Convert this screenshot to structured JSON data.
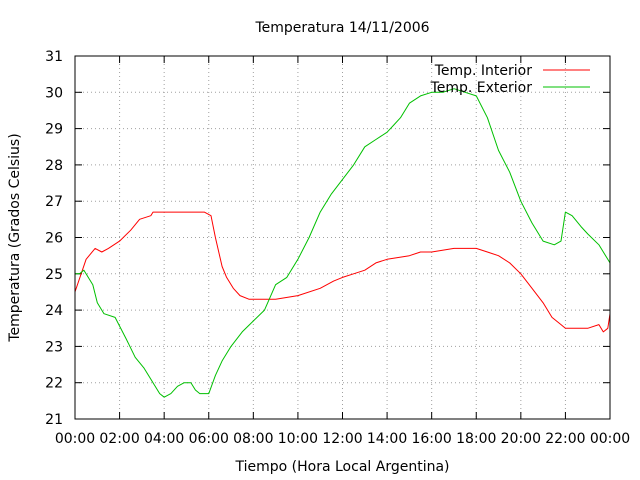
{
  "chart_data": {
    "type": "line",
    "title": "Temperatura 14/11/2006",
    "xlabel": "Tiempo (Hora Local Argentina)",
    "ylabel": "Temperatura (Grados Celsius)",
    "xlim": [
      0,
      24
    ],
    "ylim": [
      21,
      31
    ],
    "grid": true,
    "legend_position": "top-right",
    "x_tick_labels": [
      "00:00",
      "02:00",
      "04:00",
      "06:00",
      "08:00",
      "10:00",
      "12:00",
      "14:00",
      "16:00",
      "18:00",
      "20:00",
      "22:00",
      "00:00"
    ],
    "y_tick_labels": [
      "21",
      "22",
      "23",
      "24",
      "25",
      "26",
      "27",
      "28",
      "29",
      "30",
      "31"
    ],
    "series": [
      {
        "name": "Temp. Interior",
        "color": "#ff0000",
        "x_hours": [
          0,
          0.5,
          0.9,
          1.2,
          1.5,
          2,
          2.5,
          2.9,
          3.4,
          3.5,
          4,
          5,
          5.8,
          6.1,
          6.3,
          6.6,
          6.8,
          7.1,
          7.4,
          7.8,
          8,
          9,
          10,
          11,
          11.6,
          12,
          12.5,
          13,
          13.5,
          14,
          15,
          15.5,
          16,
          17,
          17.5,
          18,
          18.5,
          19,
          19.5,
          20,
          20.5,
          21,
          21.4,
          21.8,
          22,
          23,
          23.5,
          23.7,
          23.9,
          24
        ],
        "values": [
          24.5,
          25.4,
          25.7,
          25.6,
          25.7,
          25.9,
          26.2,
          26.5,
          26.6,
          26.7,
          26.7,
          26.7,
          26.7,
          26.6,
          26.0,
          25.2,
          24.9,
          24.6,
          24.4,
          24.3,
          24.3,
          24.3,
          24.4,
          24.6,
          24.8,
          24.9,
          25.0,
          25.1,
          25.3,
          25.4,
          25.5,
          25.6,
          25.6,
          25.7,
          25.7,
          25.7,
          25.6,
          25.5,
          25.3,
          25.0,
          24.6,
          24.2,
          23.8,
          23.6,
          23.5,
          23.5,
          23.6,
          23.4,
          23.5,
          23.9
        ]
      },
      {
        "name": "Temp. Exterior",
        "color": "#00c000",
        "x_hours": [
          0,
          0.2,
          0.4,
          0.8,
          1,
          1.3,
          1.8,
          2.3,
          2.7,
          3.1,
          3.5,
          3.8,
          4,
          4.3,
          4.6,
          4.9,
          5.2,
          5.4,
          5.6,
          6,
          6.3,
          6.6,
          7,
          7.5,
          8,
          8.5,
          9,
          9.5,
          10,
          10.5,
          11,
          11.5,
          12,
          12.5,
          13,
          13.5,
          14,
          14.3,
          14.6,
          15,
          15.5,
          16,
          16.5,
          17,
          17.5,
          18,
          18.5,
          19,
          19.5,
          20,
          20.5,
          21,
          21.5,
          21.8,
          22,
          22.3,
          22.7,
          23,
          23.5,
          24
        ],
        "values": [
          25.0,
          25.0,
          25.1,
          24.7,
          24.2,
          23.9,
          23.8,
          23.2,
          22.7,
          22.4,
          22.0,
          21.7,
          21.6,
          21.7,
          21.9,
          22.0,
          22.0,
          21.8,
          21.7,
          21.7,
          22.2,
          22.6,
          23.0,
          23.4,
          23.7,
          24.0,
          24.7,
          24.9,
          25.4,
          26.0,
          26.7,
          27.2,
          27.6,
          28.0,
          28.5,
          28.7,
          28.9,
          29.1,
          29.3,
          29.7,
          29.9,
          30.0,
          30.0,
          30.1,
          30.0,
          29.9,
          29.3,
          28.4,
          27.8,
          27.0,
          26.4,
          25.9,
          25.8,
          25.9,
          26.7,
          26.6,
          26.3,
          26.1,
          25.8,
          25.3
        ]
      }
    ]
  }
}
